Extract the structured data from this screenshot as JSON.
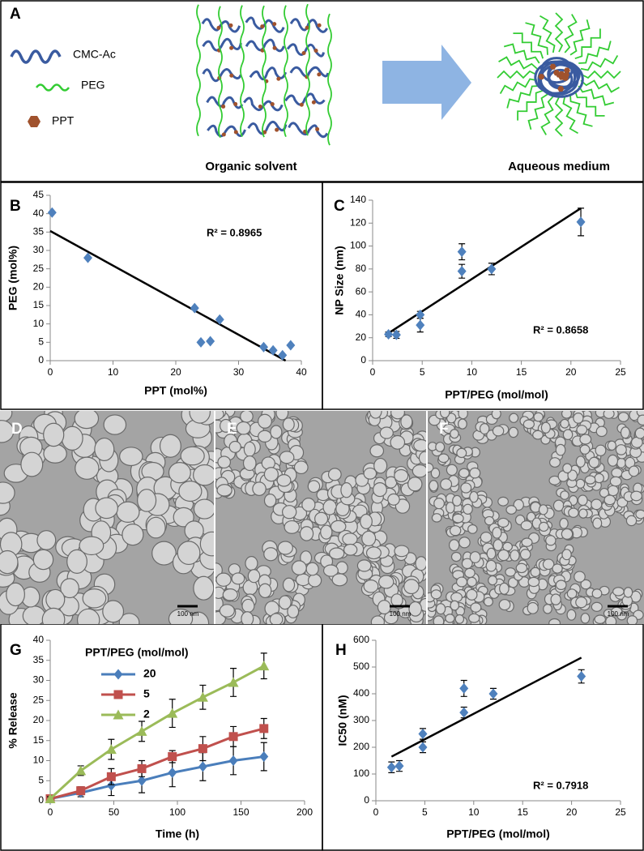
{
  "diagram": {
    "label": "A",
    "legend": [
      "CMC-Ac",
      "PEG",
      "PPT"
    ],
    "captions": [
      "Organic solvent",
      "Aqueous medium"
    ]
  },
  "micrographs": [
    {
      "label": "D",
      "scale_bar": "100 nm"
    },
    {
      "label": "E",
      "scale_bar": "100 nm"
    },
    {
      "label": "F",
      "scale_bar": "100 nm"
    }
  ],
  "chart_data": [
    {
      "type": "scatter",
      "label": "B",
      "xlabel": "PPT (mol%)",
      "ylabel": "PEG (mol%)",
      "color": "#4f81bd",
      "marker": "diamond",
      "xlim": [
        0,
        40
      ],
      "xticks": [
        0,
        10,
        20,
        30,
        40
      ],
      "ylim": [
        0,
        45
      ],
      "yticks": [
        0,
        5,
        10,
        15,
        20,
        25,
        30,
        35,
        40,
        45
      ],
      "x": [
        0.3,
        6,
        23,
        24,
        25.5,
        27,
        34,
        35.5,
        37,
        38.3
      ],
      "values": [
        40.3,
        28,
        14.3,
        5,
        5.3,
        11.2,
        3.7,
        2.8,
        1.5,
        4.2
      ],
      "trendline": {
        "x": [
          0,
          37.5
        ],
        "values": [
          35.3,
          0
        ]
      },
      "annotation": "R² = 0.8965"
    },
    {
      "type": "scatter",
      "label": "C",
      "xlabel": "PPT/PEG (mol/mol)",
      "ylabel": "NP Size (nm)",
      "color": "#4f81bd",
      "marker": "diamond",
      "xlim": [
        0,
        25
      ],
      "xticks": [
        0,
        5,
        10,
        15,
        20,
        25
      ],
      "ylim": [
        0,
        140
      ],
      "yticks": [
        0,
        20,
        40,
        60,
        80,
        100,
        120,
        140
      ],
      "x": [
        1.6,
        2.4,
        4.8,
        4.8,
        9,
        9,
        12,
        21
      ],
      "values": [
        23,
        22.5,
        31,
        40,
        78,
        95,
        80,
        121
      ],
      "errors": [
        2,
        3,
        6,
        3,
        6,
        7,
        5,
        12
      ],
      "trendline": {
        "x": [
          1.6,
          21
        ],
        "values": [
          24,
          133
        ]
      },
      "annotation": "R² = 0.8658"
    },
    {
      "type": "line",
      "label": "G",
      "xlabel": "Time (h)",
      "ylabel": "% Release",
      "legend_title": "PPT/PEG (mol/mol)",
      "xlim": [
        0,
        200
      ],
      "xticks": [
        0,
        50,
        100,
        150,
        200
      ],
      "ylim": [
        0,
        40
      ],
      "yticks": [
        0,
        5,
        10,
        15,
        20,
        25,
        30,
        35,
        40
      ],
      "x": [
        0,
        24,
        48,
        72,
        96,
        120,
        144,
        168
      ],
      "series": [
        {
          "name": "20",
          "color": "#4a7ebb",
          "marker": "diamond",
          "values": [
            0.5,
            2,
            3.8,
            5,
            7,
            8.5,
            10,
            11
          ],
          "errors": [
            0.5,
            1,
            2.5,
            3,
            3.5,
            3.5,
            3.5,
            3.5
          ]
        },
        {
          "name": "5",
          "color": "#c0504d",
          "marker": "square",
          "values": [
            0.5,
            2.5,
            6,
            8,
            11,
            13,
            16,
            18
          ],
          "errors": [
            0.5,
            1,
            2,
            2,
            1.5,
            3,
            2.5,
            2.5
          ]
        },
        {
          "name": "2",
          "color": "#9bbb59",
          "marker": "triangle",
          "values": [
            0.5,
            7.5,
            12.8,
            17.3,
            21.8,
            25.8,
            29.5,
            33.6
          ],
          "errors": [
            0.5,
            1.2,
            2.5,
            2.5,
            3.5,
            3,
            3.5,
            3.2
          ]
        }
      ]
    },
    {
      "type": "scatter",
      "label": "H",
      "xlabel": "PPT/PEG (mol/mol)",
      "ylabel": "IC50 (nM)",
      "color": "#4f81bd",
      "marker": "diamond",
      "xlim": [
        0,
        25
      ],
      "xticks": [
        0,
        5,
        10,
        15,
        20,
        25
      ],
      "ylim": [
        0,
        600
      ],
      "yticks": [
        0,
        100,
        200,
        300,
        400,
        500,
        600
      ],
      "x": [
        1.6,
        2.4,
        4.8,
        4.8,
        9,
        9,
        12,
        21
      ],
      "values": [
        125,
        130,
        200,
        250,
        330,
        420,
        400,
        465
      ],
      "errors": [
        20,
        20,
        20,
        20,
        20,
        30,
        20,
        25
      ],
      "trendline": {
        "x": [
          1.6,
          21
        ],
        "values": [
          165,
          535
        ]
      },
      "annotation": "R² = 0.7918"
    }
  ]
}
